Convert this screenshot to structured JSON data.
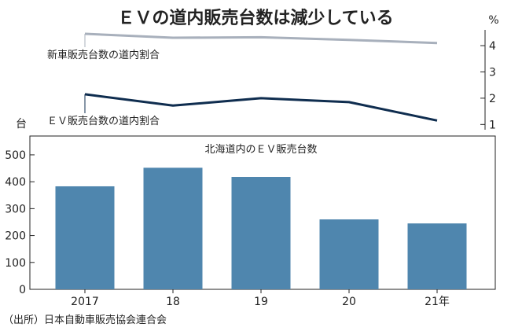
{
  "chart_data": [
    {
      "type": "line",
      "title": "ＥＶの道内販売台数は減少している",
      "unit_label": "%",
      "x": [
        "2017",
        "18",
        "19",
        "20",
        "21年"
      ],
      "ylim": [
        0.8,
        4.6
      ],
      "yticks": [
        "1",
        "2",
        "3",
        "4"
      ],
      "series": [
        {
          "name": "新車販売台数の道内割合",
          "values": [
            4.45,
            4.3,
            4.32,
            4.22,
            4.1
          ],
          "color": "#a8b0bc"
        },
        {
          "name": "ＥＶ販売台数の道内割合",
          "values": [
            2.15,
            1.72,
            2.0,
            1.85,
            1.15
          ],
          "color": "#0f2d4f"
        }
      ]
    },
    {
      "type": "bar",
      "title": "北海道内のＥＶ販売台数",
      "unit_label": "台",
      "categories": [
        "2017",
        "18",
        "19",
        "20",
        "21年"
      ],
      "values": [
        383,
        452,
        418,
        260,
        245
      ],
      "ylim": [
        0,
        570
      ],
      "yticks": [
        "0",
        "100",
        "200",
        "300",
        "400",
        "500"
      ],
      "bar_color": "#4f86ae"
    }
  ],
  "source": "（出所）日本自動車販売協会連合会"
}
